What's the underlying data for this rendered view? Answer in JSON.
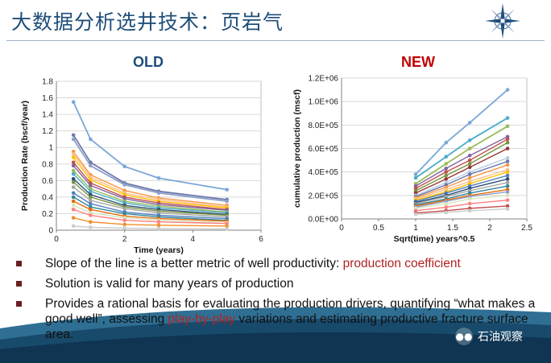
{
  "title": "大数据分析选井技术：页岩气",
  "labels": {
    "old": "OLD",
    "new": "NEW"
  },
  "colors": {
    "title": "#1f4e79",
    "highlight": "#b22222",
    "old_label": "#1f4e79",
    "new_label": "#c00000"
  },
  "bullets": [
    {
      "before": "Slope of the line is a better metric of well productivity: ",
      "highlight": "production coefficient",
      "after": ""
    },
    {
      "before": "Solution is valid for many years of production",
      "highlight": "",
      "after": ""
    },
    {
      "before": "Provides a rational basis for evaluating the production drivers, quantifying “what makes a good well”, assessing ",
      "highlight": "play-by-play",
      "after": " variations and estimating productive fracture surface area."
    }
  ],
  "watermark": {
    "icon": "wechat-icon",
    "text": "石油观察"
  },
  "chart_data": [
    {
      "type": "line",
      "title": "",
      "xlabel": "Time (years)",
      "ylabel": "Production Rate (bscf/year)",
      "xlim": [
        0,
        6
      ],
      "ylim": [
        0,
        1.8
      ],
      "xticks": [
        "0",
        "2",
        "4",
        "6"
      ],
      "yticks": [
        "0",
        "0.2",
        "0.4",
        "0.6",
        "0.8",
        "1",
        "1.2",
        "1.4",
        "1.6",
        "1.8"
      ],
      "grid": true,
      "x": [
        0.5,
        1,
        2,
        3,
        5
      ],
      "series": [
        {
          "color": "#7aa7d8",
          "values": [
            1.55,
            1.1,
            0.77,
            0.63,
            0.49
          ]
        },
        {
          "color": "#6d78ad",
          "values": [
            1.15,
            0.82,
            0.57,
            0.47,
            0.37
          ]
        },
        {
          "color": "#8e9fc8",
          "values": [
            1.1,
            0.78,
            0.55,
            0.45,
            0.35
          ]
        },
        {
          "color": "#f79646",
          "values": [
            0.95,
            0.67,
            0.48,
            0.39,
            0.3
          ]
        },
        {
          "color": "#fac090",
          "values": [
            0.92,
            0.64,
            0.45,
            0.37,
            0.28
          ]
        },
        {
          "color": "#ffc000",
          "values": [
            0.88,
            0.61,
            0.43,
            0.35,
            0.27
          ]
        },
        {
          "color": "#c0504d",
          "values": [
            0.82,
            0.57,
            0.4,
            0.33,
            0.25
          ]
        },
        {
          "color": "#8064a2",
          "values": [
            0.78,
            0.54,
            0.38,
            0.31,
            0.24
          ]
        },
        {
          "color": "#9bbb59",
          "values": [
            0.72,
            0.5,
            0.35,
            0.29,
            0.22
          ]
        },
        {
          "color": "#4bacc6",
          "values": [
            0.68,
            0.47,
            0.33,
            0.27,
            0.21
          ]
        },
        {
          "color": "#2c4d75",
          "values": [
            0.62,
            0.43,
            0.3,
            0.25,
            0.19
          ]
        },
        {
          "color": "#77933c",
          "values": [
            0.58,
            0.4,
            0.28,
            0.23,
            0.18
          ]
        },
        {
          "color": "#a5a5a5",
          "values": [
            0.52,
            0.36,
            0.26,
            0.21,
            0.16
          ]
        },
        {
          "color": "#4f81bd",
          "values": [
            0.45,
            0.32,
            0.22,
            0.18,
            0.14
          ]
        },
        {
          "color": "#31859c",
          "values": [
            0.4,
            0.28,
            0.2,
            0.16,
            0.12
          ]
        },
        {
          "color": "#e46c0a",
          "values": [
            0.35,
            0.25,
            0.17,
            0.14,
            0.11
          ]
        },
        {
          "color": "#d7e4bd",
          "values": [
            0.3,
            0.21,
            0.15,
            0.12,
            0.09
          ]
        },
        {
          "color": "#ff7f7f",
          "values": [
            0.25,
            0.18,
            0.12,
            0.1,
            0.08
          ]
        },
        {
          "color": "#f28e2b",
          "values": [
            0.15,
            0.1,
            0.07,
            0.06,
            0.05
          ]
        },
        {
          "color": "#cccccc",
          "values": [
            0.05,
            0.035,
            0.025,
            0.02,
            0.015
          ]
        }
      ]
    },
    {
      "type": "line",
      "title": "",
      "xlabel": "Sqrt(time) years^0.5",
      "ylabel": "cumulative production (mscf)",
      "xlim": [
        0,
        2.5
      ],
      "ylim": [
        0,
        1200000
      ],
      "xticks": [
        "0",
        "0.5",
        "1",
        "1.5",
        "2",
        "2.5"
      ],
      "yticks": [
        "0.0E+00",
        "2.0E+05",
        "4.0E+05",
        "6.0E+05",
        "8.0E+05",
        "1.0E+06",
        "1.2E+06"
      ],
      "grid": true,
      "x": [
        1,
        1.41,
        1.73,
        2.24
      ],
      "series": [
        {
          "color": "#7aa7d8",
          "values": [
            380000,
            650000,
            820000,
            1100000
          ]
        },
        {
          "color": "#4bacc6",
          "values": [
            350000,
            530000,
            670000,
            860000
          ]
        },
        {
          "color": "#9bbb59",
          "values": [
            300000,
            470000,
            600000,
            790000
          ]
        },
        {
          "color": "#8064a2",
          "values": [
            280000,
            430000,
            540000,
            700000
          ]
        },
        {
          "color": "#c0504d",
          "values": [
            260000,
            400000,
            500000,
            680000
          ]
        },
        {
          "color": "#77933c",
          "values": [
            240000,
            370000,
            470000,
            650000
          ]
        },
        {
          "color": "#953735",
          "values": [
            220000,
            340000,
            440000,
            600000
          ]
        },
        {
          "color": "#b9cde5",
          "values": [
            200000,
            310000,
            400000,
            520000
          ]
        },
        {
          "color": "#6d78ad",
          "values": [
            190000,
            290000,
            380000,
            490000
          ]
        },
        {
          "color": "#f79646",
          "values": [
            180000,
            270000,
            350000,
            460000
          ]
        },
        {
          "color": "#fac090",
          "values": [
            170000,
            250000,
            320000,
            420000
          ]
        },
        {
          "color": "#ffc000",
          "values": [
            160000,
            230000,
            300000,
            400000
          ]
        },
        {
          "color": "#4f81bd",
          "values": [
            150000,
            220000,
            280000,
            370000
          ]
        },
        {
          "color": "#2c4d75",
          "values": [
            140000,
            200000,
            260000,
            340000
          ]
        },
        {
          "color": "#a5a5a5",
          "values": [
            130000,
            190000,
            240000,
            310000
          ]
        },
        {
          "color": "#31859c",
          "values": [
            120000,
            170000,
            220000,
            280000
          ]
        },
        {
          "color": "#e46c0a",
          "values": [
            110000,
            160000,
            200000,
            250000
          ]
        },
        {
          "color": "#8e9fc8",
          "values": [
            100000,
            150000,
            190000,
            230000
          ]
        },
        {
          "color": "#d7e4bd",
          "values": [
            90000,
            130000,
            170000,
            200000
          ]
        },
        {
          "color": "#ff7f7f",
          "values": [
            70000,
            100000,
            130000,
            160000
          ]
        },
        {
          "color": "#c0504d",
          "values": [
            50000,
            70000,
            90000,
            110000
          ]
        },
        {
          "color": "#cccccc",
          "values": [
            40000,
            55000,
            70000,
            85000
          ]
        }
      ]
    }
  ]
}
